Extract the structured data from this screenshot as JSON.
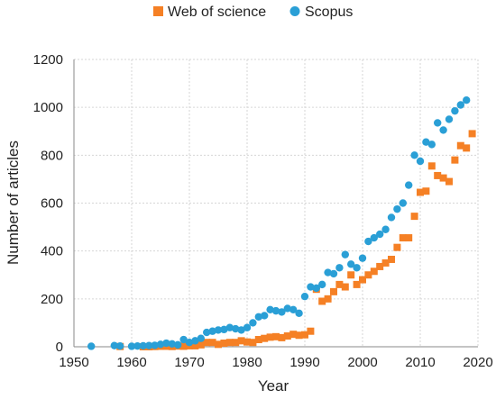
{
  "chart_data": {
    "type": "scatter",
    "title": "",
    "xlabel": "Year",
    "ylabel": "Number of articles",
    "xlim": [
      1950,
      2020
    ],
    "ylim": [
      0,
      1200
    ],
    "xticks": [
      1950,
      1960,
      1970,
      1980,
      1990,
      2000,
      2010,
      2020
    ],
    "yticks": [
      0,
      200,
      400,
      600,
      800,
      1000,
      1200
    ],
    "grid": true,
    "legend_position": "top",
    "series": [
      {
        "name": "Web of science",
        "color": "#F58025",
        "marker": "square",
        "x": [
          1958,
          1962,
          1963,
          1964,
          1965,
          1966,
          1967,
          1968,
          1969,
          1970,
          1971,
          1972,
          1973,
          1974,
          1975,
          1976,
          1977,
          1978,
          1979,
          1980,
          1981,
          1982,
          1983,
          1984,
          1985,
          1986,
          1987,
          1988,
          1989,
          1990,
          1991,
          1992,
          1993,
          1994,
          1995,
          1996,
          1997,
          1998,
          1999,
          2000,
          2001,
          2002,
          2003,
          2004,
          2005,
          2006,
          2007,
          2008,
          2009,
          2010,
          2011,
          2012,
          2013,
          2014,
          2015,
          2016,
          2017,
          2018,
          2019
        ],
        "y": [
          1,
          0,
          0,
          1,
          2,
          2,
          1,
          3,
          2,
          4,
          4,
          8,
          18,
          18,
          10,
          15,
          18,
          18,
          25,
          20,
          18,
          30,
          35,
          40,
          42,
          38,
          45,
          52,
          48,
          50,
          65,
          240,
          190,
          200,
          230,
          260,
          250,
          300,
          260,
          280,
          300,
          315,
          335,
          350,
          365,
          415,
          455,
          455,
          545,
          645,
          650,
          755,
          715,
          705,
          690,
          780,
          840,
          830,
          890
        ]
      },
      {
        "name": "Scopus",
        "color": "#2A9FD6",
        "marker": "circle",
        "x": [
          1953,
          1957,
          1958,
          1960,
          1961,
          1962,
          1963,
          1964,
          1965,
          1966,
          1967,
          1968,
          1969,
          1970,
          1971,
          1972,
          1973,
          1974,
          1975,
          1976,
          1977,
          1978,
          1979,
          1980,
          1981,
          1982,
          1983,
          1984,
          1985,
          1986,
          1987,
          1988,
          1989,
          1990,
          1991,
          1992,
          1993,
          1994,
          1995,
          1996,
          1997,
          1998,
          1999,
          2000,
          2001,
          2002,
          2003,
          2004,
          2005,
          2006,
          2007,
          2008,
          2009,
          2010,
          2011,
          2012,
          2013,
          2014,
          2015,
          2016,
          2017,
          2018
        ],
        "y": [
          2,
          5,
          3,
          2,
          3,
          4,
          5,
          6,
          10,
          15,
          12,
          8,
          30,
          18,
          25,
          35,
          60,
          65,
          70,
          72,
          80,
          75,
          70,
          80,
          100,
          125,
          130,
          155,
          150,
          145,
          160,
          155,
          140,
          210,
          250,
          245,
          260,
          310,
          305,
          330,
          385,
          345,
          330,
          370,
          440,
          455,
          470,
          490,
          540,
          575,
          600,
          675,
          800,
          775,
          855,
          845,
          935,
          905,
          950,
          985,
          1010,
          1030
        ]
      }
    ]
  }
}
